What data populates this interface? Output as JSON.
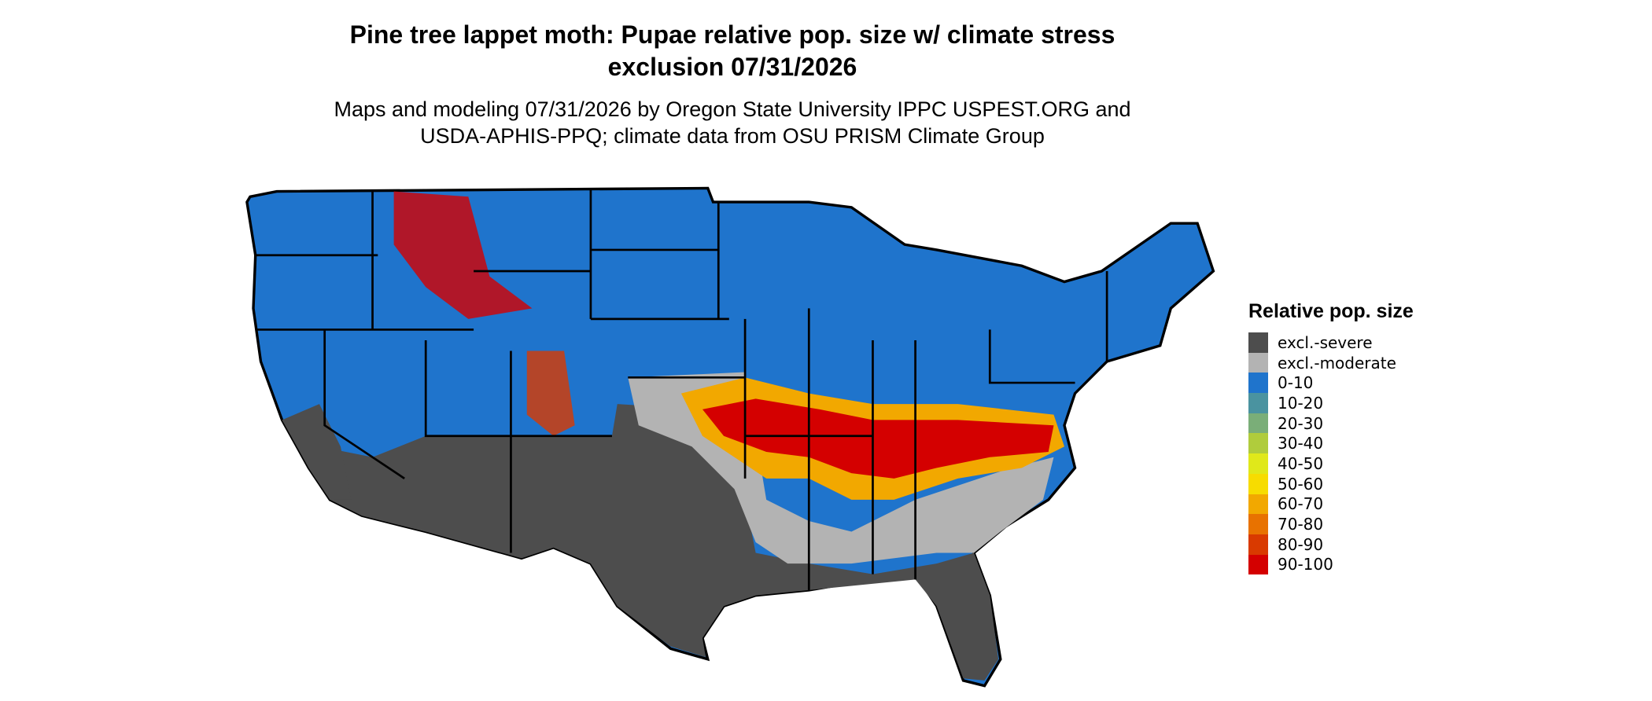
{
  "title": "Pine tree lappet moth: Pupae relative pop. size w/ climate stress exclusion 07/31/2026",
  "subtitle": "Maps and modeling 07/31/2026 by Oregon State University IPPC USPEST.ORG and USDA-APHIS-PPQ; climate data from OSU PRISM Climate Group",
  "legend": {
    "title": "Relative pop. size",
    "items": [
      {
        "label": "excl.-severe",
        "color": "#4d4d4d"
      },
      {
        "label": "excl.-moderate",
        "color": "#b3b3b3"
      },
      {
        "label": "0-10",
        "color": "#1f74cc"
      },
      {
        "label": "10-20",
        "color": "#4a93a0"
      },
      {
        "label": "20-30",
        "color": "#7aae78"
      },
      {
        "label": "30-40",
        "color": "#b0cc3c"
      },
      {
        "label": "40-50",
        "color": "#e0e81a"
      },
      {
        "label": "50-60",
        "color": "#f7dc00"
      },
      {
        "label": "60-70",
        "color": "#f2a800"
      },
      {
        "label": "70-80",
        "color": "#e87200"
      },
      {
        "label": "80-90",
        "color": "#d93a00"
      },
      {
        "label": "90-100",
        "color": "#d40000"
      }
    ]
  }
}
